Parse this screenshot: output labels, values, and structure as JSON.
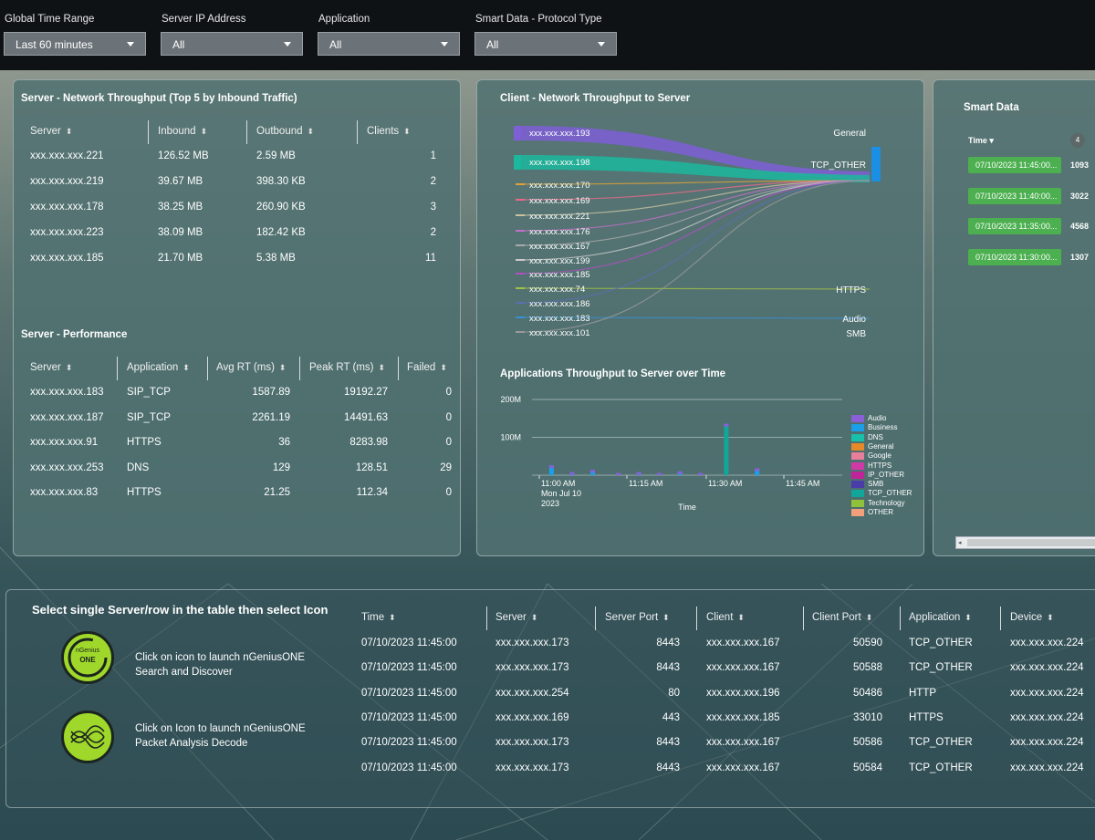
{
  "filters": [
    {
      "label": "Global Time Range",
      "value": "Last 60 minutes"
    },
    {
      "label": "Server IP Address",
      "value": "All"
    },
    {
      "label": "Application",
      "value": "All"
    },
    {
      "label": "Smart Data - Protocol Type",
      "value": "All"
    }
  ],
  "throughput": {
    "title": "Server - Network Throughput (Top 5 by Inbound Traffic)",
    "headers": [
      "Server",
      "Inbound",
      "Outbound",
      "Clients"
    ],
    "rows": [
      [
        "xxx.xxx.xxx.221",
        "126.52 MB",
        "2.59 MB",
        "1"
      ],
      [
        "xxx.xxx.xxx.219",
        "39.67 MB",
        "398.30 KB",
        "2"
      ],
      [
        "xxx.xxx.xxx.178",
        "38.25 MB",
        "260.90 KB",
        "3"
      ],
      [
        "xxx.xxx.xxx.223",
        "38.09 MB",
        "182.42 KB",
        "2"
      ],
      [
        "xxx.xxx.xxx.185",
        "21.70 MB",
        "5.38 MB",
        "11"
      ]
    ]
  },
  "performance": {
    "title": "Server - Performance",
    "headers": [
      "Server",
      "Application",
      "Avg RT (ms)",
      "Peak RT (ms)",
      "Failed"
    ],
    "rows": [
      [
        "xxx.xxx.xxx.183",
        "SIP_TCP",
        "1587.89",
        "19192.27",
        "0"
      ],
      [
        "xxx.xxx.xxx.187",
        "SIP_TCP",
        "2261.19",
        "14491.63",
        "0"
      ],
      [
        "xxx.xxx.xxx.91",
        "HTTPS",
        "36",
        "8283.98",
        "0"
      ],
      [
        "xxx.xxx.xxx.253",
        "DNS",
        "129",
        "128.51",
        "29"
      ],
      [
        "xxx.xxx.xxx.83",
        "HTTPS",
        "21.25",
        "112.34",
        "0"
      ]
    ]
  },
  "client_throughput": {
    "title": "Client - Network Throughput to Server",
    "clients": [
      "xxx.xxx.xxx.193",
      "xxx.xxx.xxx.198",
      "xxx.xxx.xxx.170",
      "xxx.xxx.xxx.169",
      "xxx.xxx.xxx.221",
      "xxx.xxx.xxx.176",
      "xxx.xxx.xxx.167",
      "xxx.xxx.xxx.199",
      "xxx.xxx.xxx.185",
      "xxx.xxx.xxx.74",
      "xxx.xxx.xxx.186",
      "xxx.xxx.xxx.183",
      "xxx.xxx.xxx.101"
    ],
    "apps": [
      "General",
      "TCP_OTHER",
      "HTTPS",
      "Audio",
      "SMB"
    ],
    "colors": {
      "purple": "#7e5fd6",
      "teal": "#1bb89e",
      "blue": "#1a8fe3"
    }
  },
  "apps_over_time": {
    "title": "Applications Throughput to Server over Time",
    "xlabel": "Time"
  },
  "chart_data": {
    "type": "bar",
    "title": "Applications Throughput to Server over Time",
    "xlabel": "Time",
    "ylabel": "",
    "yticks": [
      "200M",
      "100M"
    ],
    "xticks": [
      "11:00 AM",
      "11:15 AM",
      "11:30 AM",
      "11:45 AM"
    ],
    "xtick_sub": [
      "Mon Jul 10",
      "2023"
    ],
    "ylim": [
      0,
      200
    ],
    "legend": [
      "Audio",
      "Business",
      "DNS",
      "General",
      "Google",
      "HTTPS",
      "IP_OTHER",
      "SMB",
      "TCP_OTHER",
      "Technology",
      "OTHER"
    ],
    "legend_colors": [
      "#8a5fd8",
      "#1b9fe8",
      "#18c0a9",
      "#e6892b",
      "#e97d9c",
      "#d03aa7",
      "#c0249a",
      "#4a3da8",
      "#10a79a",
      "#8fc23a",
      "#f2a07b"
    ],
    "bars": [
      {
        "x": 3,
        "value": 26
      },
      {
        "x": 7,
        "value": 8
      },
      {
        "x": 11,
        "value": 14
      },
      {
        "x": 16,
        "value": 6
      },
      {
        "x": 20,
        "value": 8
      },
      {
        "x": 24,
        "value": 6
      },
      {
        "x": 28,
        "value": 10
      },
      {
        "x": 32,
        "value": 6
      },
      {
        "x": 37,
        "value": 136
      },
      {
        "x": 43,
        "value": 18
      }
    ],
    "x_range": [
      0,
      60
    ]
  },
  "smart": {
    "title": "Smart Data",
    "time_header": "Time",
    "count": "4",
    "rows": [
      {
        "time": "07/10/2023 11:45:00...",
        "val": "1093"
      },
      {
        "time": "07/10/2023 11:40:00...",
        "val": "3022"
      },
      {
        "time": "07/10/2023 11:35:00...",
        "val": "4568"
      },
      {
        "time": "07/10/2023 11:30:00...",
        "val": "1307"
      }
    ]
  },
  "bottom": {
    "title": "Select single Server/row in the table then select Icon",
    "launch1": [
      "Click on icon to launch nGeniusONE",
      "Search and Discover"
    ],
    "launch2": [
      "Click on Icon to launch nGeniusONE",
      "Packet Analysis Decode"
    ],
    "logo_text": [
      "nGenius",
      "ONE"
    ],
    "headers": [
      "Time",
      "Server",
      "Server Port",
      "Client",
      "Client Port",
      "Application",
      "Device"
    ],
    "rows": [
      [
        "07/10/2023 11:45:00",
        "xxx.xxx.xxx.173",
        "8443",
        "xxx.xxx.xxx.167",
        "50590",
        "TCP_OTHER",
        "xxx.xxx.xxx.224"
      ],
      [
        "07/10/2023 11:45:00",
        "xxx.xxx.xxx.173",
        "8443",
        "xxx.xxx.xxx.167",
        "50588",
        "TCP_OTHER",
        "xxx.xxx.xxx.224"
      ],
      [
        "07/10/2023 11:45:00",
        "xxx.xxx.xxx.254",
        "80",
        "xxx.xxx.xxx.196",
        "50486",
        "HTTP",
        "xxx.xxx.xxx.224"
      ],
      [
        "07/10/2023 11:45:00",
        "xxx.xxx.xxx.169",
        "443",
        "xxx.xxx.xxx.185",
        "33010",
        "HTTPS",
        "xxx.xxx.xxx.224"
      ],
      [
        "07/10/2023 11:45:00",
        "xxx.xxx.xxx.173",
        "8443",
        "xxx.xxx.xxx.167",
        "50586",
        "TCP_OTHER",
        "xxx.xxx.xxx.224"
      ],
      [
        "07/10/2023 11:45:00",
        "xxx.xxx.xxx.173",
        "8443",
        "xxx.xxx.xxx.167",
        "50584",
        "TCP_OTHER",
        "xxx.xxx.xxx.224"
      ]
    ]
  }
}
